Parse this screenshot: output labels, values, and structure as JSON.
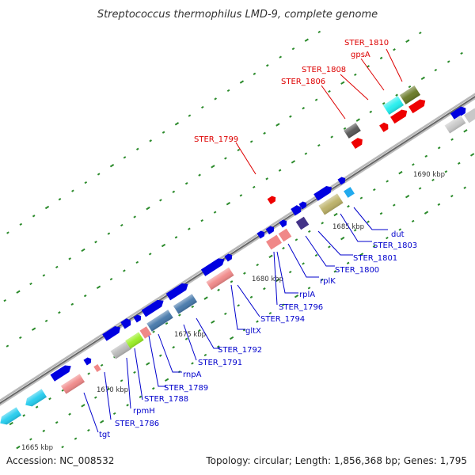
{
  "title": "Streptococcus thermophilus LMD-9, complete genome",
  "footer": {
    "accession": "Accession: NC_008532",
    "summary": "Topology: circular; Length: 1,856,368 bp; Genes: 1,795"
  },
  "colors": {
    "forward_gene": "#0000e0",
    "selected_gene": "#ee0000",
    "axis": "#999999",
    "tick": "#2a8a2a",
    "label_normal": "#0000cc",
    "label_selected": "#dd0000"
  },
  "kbp_labels": [
    "1665 kbp",
    "1670 kbp",
    "1675 kbp",
    "1680 kbp",
    "1685 kbp",
    "1690 kbp"
  ],
  "selected_labels": [
    "STER_1810",
    "gpsA",
    "STER_1808",
    "STER_1806",
    "STER_1799"
  ],
  "gene_labels": [
    "dut",
    "STER_1803",
    "STER_1801",
    "STER_1800",
    "rplK",
    "rplA",
    "STER_1796",
    "STER_1794",
    "gltX",
    "STER_1792",
    "STER_1791",
    "rnpA",
    "STER_1789",
    "STER_1788",
    "rpmH",
    "STER_1786",
    "tgt"
  ]
}
